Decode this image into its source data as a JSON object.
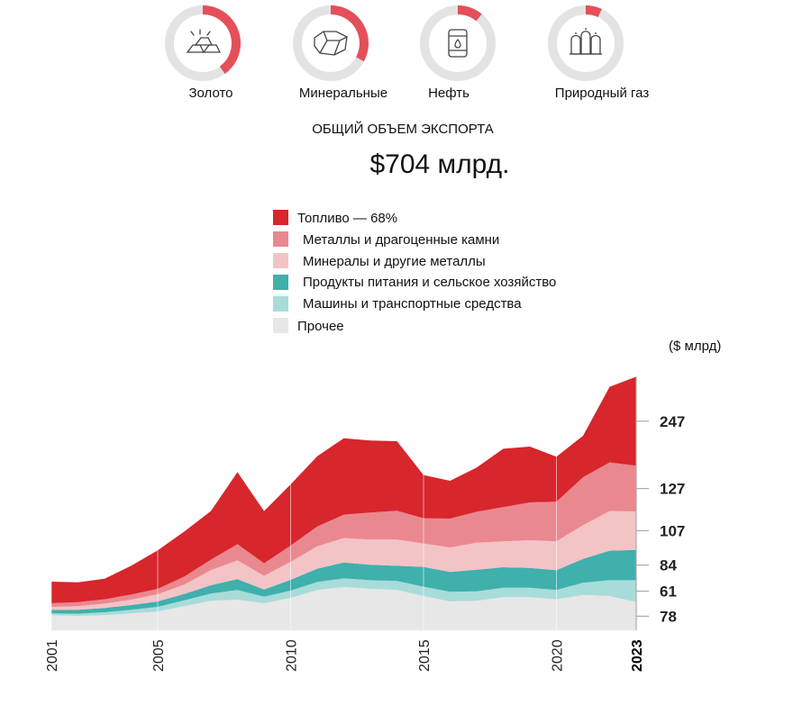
{
  "donuts": [
    {
      "label": "Золото",
      "share": 0.4,
      "icon": "gold-bars-icon"
    },
    {
      "label": "Минеральные",
      "share": 0.33,
      "icon": "mineral-rock-icon"
    },
    {
      "label": "Нефть",
      "share": 0.11,
      "icon": "oil-barrel-icon"
    },
    {
      "label": "Природный газ",
      "share": 0.07,
      "icon": "gas-tanks-icon"
    }
  ],
  "header": {
    "subtitle": "ОБЩИЙ ОБЪЕМ ЭКСПОРТА",
    "total": "$704 млрд."
  },
  "colors": {
    "fuel": "#d7262c",
    "metals": "#ea8890",
    "minerals": "#f4c3c6",
    "food": "#3fb0ac",
    "machinery": "#a8dcd9",
    "other": "#e7e7e7",
    "donut_track": "#e3e3e3",
    "donut_fill": "#e3505a"
  },
  "chart_data": {
    "type": "area",
    "stacked": true,
    "unit_label": "($ млрд)",
    "x": [
      2001,
      2002,
      2003,
      2004,
      2005,
      2006,
      2007,
      2008,
      2009,
      2010,
      2011,
      2012,
      2013,
      2014,
      2015,
      2016,
      2017,
      2018,
      2019,
      2020,
      2021,
      2022,
      2023
    ],
    "series": [
      {
        "name": "Прочее",
        "key": "other",
        "values": [
          42,
          40,
          42,
          47,
          52,
          67,
          82,
          85,
          75,
          90,
          112,
          120,
          115,
          112,
          95,
          80,
          82,
          92,
          92,
          86,
          98,
          95,
          78
        ]
      },
      {
        "name": "Машины и транспортные средства",
        "key": "machinery",
        "values": [
          5,
          6,
          8,
          10,
          13,
          16,
          20,
          27,
          18,
          20,
          22,
          24,
          24,
          25,
          26,
          27,
          26,
          26,
          26,
          26,
          34,
          44,
          61
        ]
      },
      {
        "name": "Продукты питания и сельское хозяйство",
        "key": "food",
        "values": [
          10,
          11,
          12,
          13,
          15,
          18,
          23,
          30,
          20,
          30,
          37,
          44,
          43,
          42,
          55,
          55,
          60,
          57,
          55,
          55,
          66,
          82,
          84
        ]
      },
      {
        "name": "Минералы и другие металлы",
        "key": "minerals",
        "values": [
          8,
          10,
          12,
          15,
          20,
          26,
          42,
          52,
          38,
          50,
          62,
          68,
          70,
          73,
          65,
          68,
          75,
          72,
          77,
          80,
          94,
          110,
          107
        ]
      },
      {
        "name": "Металлы и драгоценные камни",
        "key": "metals",
        "values": [
          10,
          11,
          12,
          14,
          15,
          22,
          29,
          45,
          35,
          45,
          55,
          65,
          75,
          80,
          70,
          80,
          86,
          95,
          105,
          110,
          133,
          135,
          127
        ]
      },
      {
        "name": "Топливо — 68%",
        "key": "fuel",
        "values": [
          60,
          55,
          57,
          80,
          107,
          125,
          135,
          200,
          145,
          170,
          195,
          212,
          200,
          193,
          120,
          105,
          123,
          162,
          155,
          125,
          115,
          210,
          247
        ]
      }
    ],
    "tick_series_order": [
      "fuel",
      "metals",
      "minerals",
      "food",
      "machinery",
      "other"
    ],
    "x_ticks": [
      2001,
      2005,
      2010,
      2015,
      2020,
      2023
    ],
    "ylim": [
      0,
      735
    ],
    "legend_position": "top-center"
  }
}
